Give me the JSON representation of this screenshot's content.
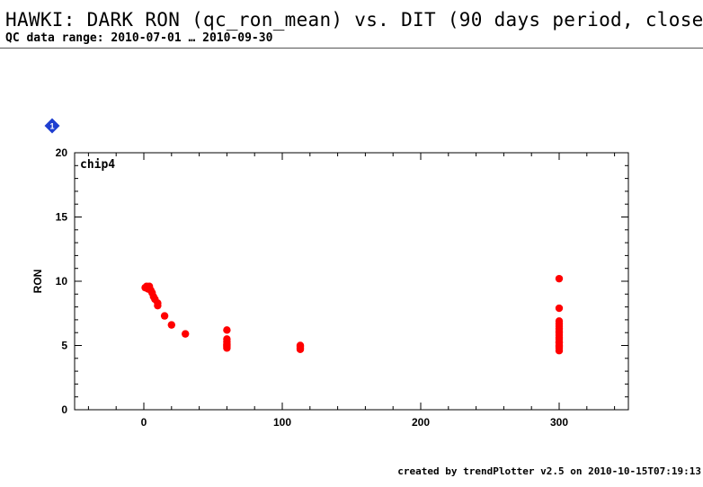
{
  "header": {
    "title": "HAWKI: DARK RON (qc_ron_mean) vs. DIT (90 days period, close-",
    "subtitle": "QC data range: 2010-07-01 … 2010-09-30"
  },
  "footer": {
    "credit": "created by trendPlotter v2.5 on 2010-10-15T07:19:13"
  },
  "badge": {
    "number": "1",
    "color": "#1f3fd0"
  },
  "chart_data": {
    "type": "scatter",
    "panel_label": "chip4",
    "xlabel": "",
    "ylabel": "RON",
    "xlim": [
      -50,
      350
    ],
    "ylim": [
      0,
      20
    ],
    "x_ticks": [
      0,
      100,
      200,
      300
    ],
    "y_ticks": [
      0,
      5,
      10,
      15,
      20
    ],
    "marker_color": "#ff0000",
    "series": [
      {
        "x": [
          1,
          2,
          3,
          4,
          5,
          6,
          7,
          8,
          10,
          10,
          15,
          20,
          30,
          60,
          60,
          60,
          60,
          60,
          60,
          60,
          113,
          113,
          113,
          113,
          300,
          300,
          300,
          300,
          300,
          300,
          300,
          300,
          300,
          300,
          300,
          300,
          300,
          300,
          300,
          300,
          300
        ],
        "y": [
          9.5,
          9.6,
          9.4,
          9.6,
          9.3,
          9.1,
          8.8,
          8.6,
          8.3,
          8.1,
          7.3,
          6.6,
          5.9,
          6.2,
          5.5,
          5.3,
          5.1,
          5.0,
          4.9,
          4.8,
          5.0,
          4.9,
          4.8,
          4.7,
          10.2,
          7.9,
          6.9,
          6.7,
          6.5,
          6.3,
          6.1,
          6.0,
          5.8,
          5.6,
          5.5,
          5.3,
          5.2,
          5.0,
          4.9,
          4.8,
          4.6
        ]
      }
    ]
  }
}
